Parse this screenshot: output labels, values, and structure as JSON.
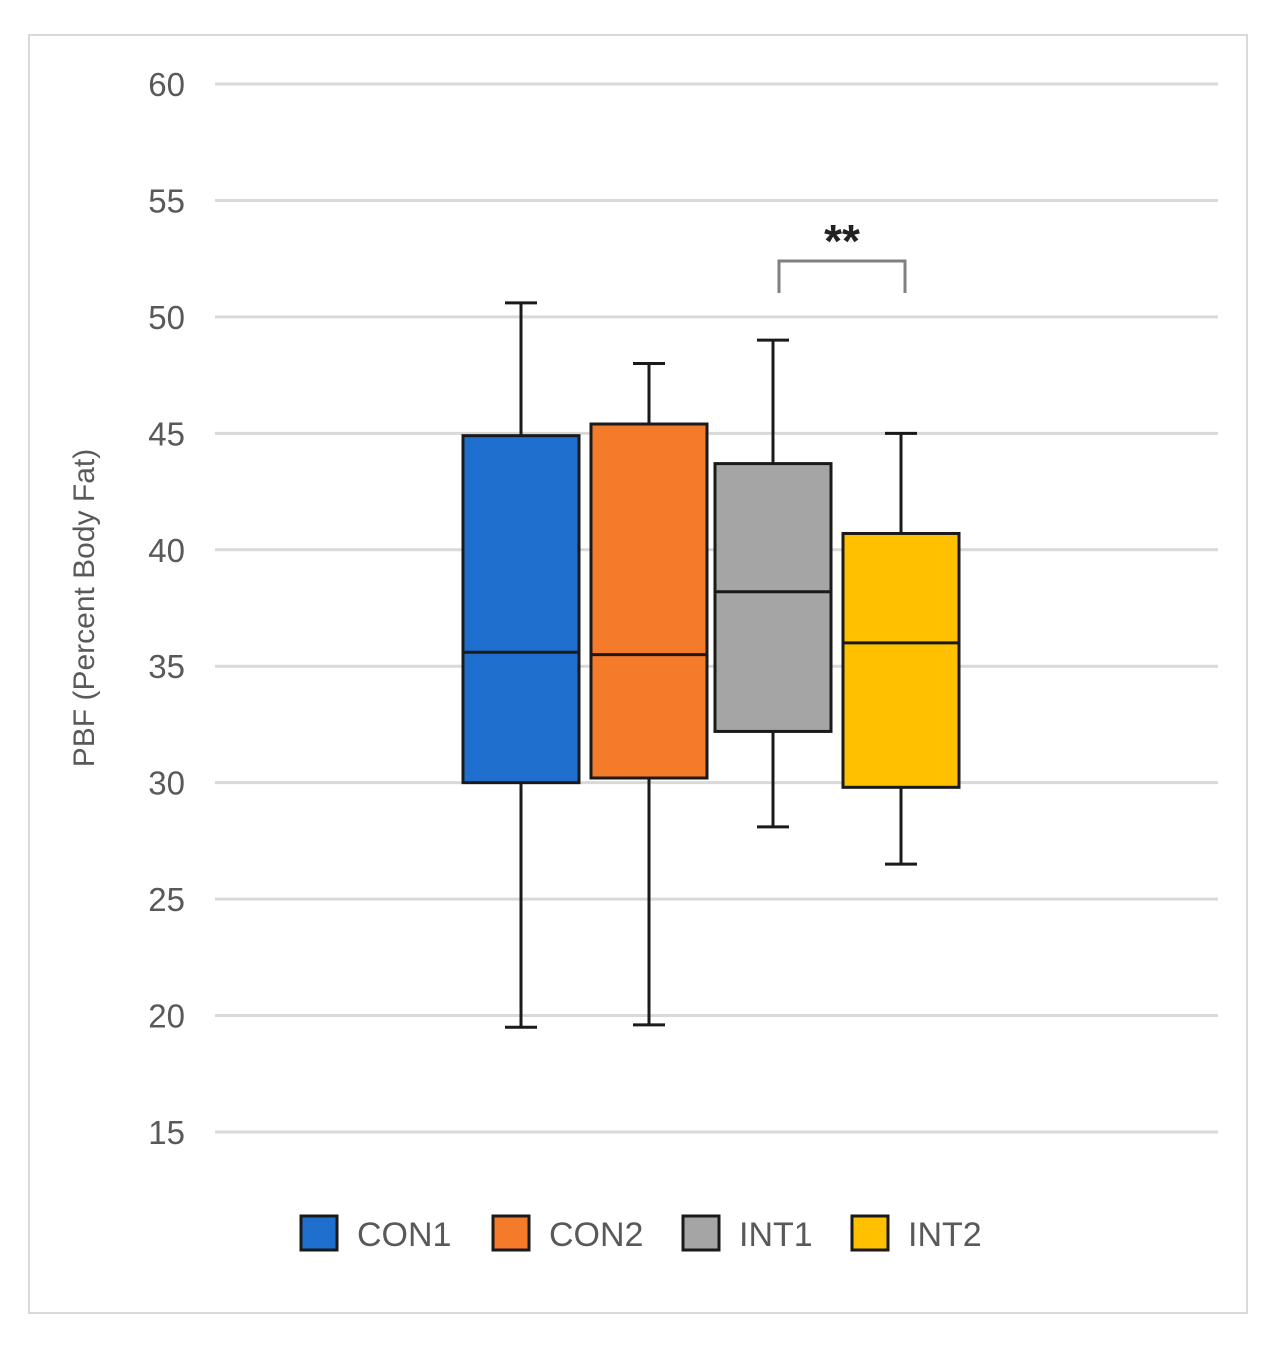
{
  "chart_data": {
    "type": "boxplot",
    "title": "",
    "xlabel": "",
    "ylabel": "PBF (Percent Body Fat)",
    "ylim": [
      15,
      60
    ],
    "yticks": [
      15,
      20,
      25,
      30,
      35,
      40,
      45,
      50,
      55,
      60
    ],
    "grid": "horizontal",
    "legend_position": "bottom",
    "series": [
      {
        "name": "CON1",
        "color": "#1f6fcf",
        "min": 19.5,
        "q1": 30.0,
        "median": 35.6,
        "q3": 44.9,
        "max": 50.6
      },
      {
        "name": "CON2",
        "color": "#f47b29",
        "min": 19.6,
        "q1": 30.2,
        "median": 35.5,
        "q3": 45.4,
        "max": 48.0
      },
      {
        "name": "INT1",
        "color": "#a5a5a5",
        "min": 28.1,
        "q1": 32.2,
        "median": 38.2,
        "q3": 43.7,
        "max": 49.0
      },
      {
        "name": "INT2",
        "color": "#ffc000",
        "min": 26.5,
        "q1": 29.8,
        "median": 36.0,
        "q3": 40.7,
        "max": 45.0
      }
    ],
    "annotations": [
      {
        "text": "**",
        "between": [
          "INT1",
          "INT2"
        ],
        "y": 52.4
      }
    ]
  }
}
